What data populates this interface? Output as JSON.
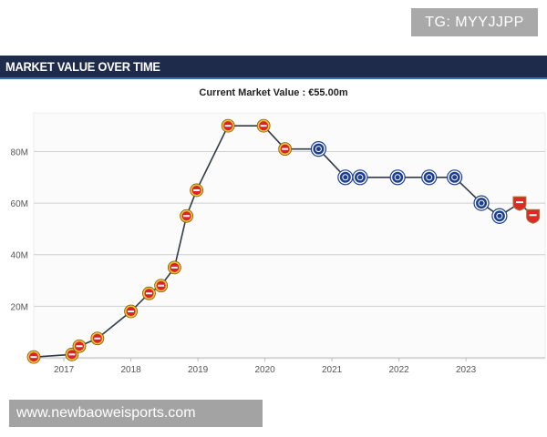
{
  "watermark_top": "TG: MYYJJPP",
  "header": {
    "title": "MARKET VALUE OVER TIME"
  },
  "watermark_bottom": "www.newbaoweisports.com",
  "chart_data": {
    "type": "line",
    "title": "Current Market Value : €55.00m",
    "xlabel": "",
    "ylabel": "",
    "ylim": [
      0,
      95
    ],
    "xlim": [
      2016.55,
      2024.1
    ],
    "grid": true,
    "y_ticks": [
      20,
      40,
      60,
      80
    ],
    "y_tick_labels": [
      "20M",
      "40M",
      "60M",
      "80M"
    ],
    "x_ticks": [
      2017,
      2018,
      2019,
      2020,
      2021,
      2022,
      2023
    ],
    "x_tick_labels": [
      "2017",
      "2018",
      "2019",
      "2020",
      "2021",
      "2022",
      "2023"
    ],
    "line_color": "#2f3b46",
    "clubs": {
      "leverkusen": {
        "fill": "#d8232a",
        "ring": "#f1c232"
      },
      "chelsea": {
        "fill": "#1c3f94",
        "ring": "#ffffff"
      },
      "arsenal": {
        "fill": "#db2b24",
        "ring": "#9c7a3c"
      }
    },
    "points": [
      {
        "x": 2016.55,
        "y": 0.3,
        "club": "leverkusen"
      },
      {
        "x": 2017.12,
        "y": 1.3,
        "club": "leverkusen"
      },
      {
        "x": 2017.23,
        "y": 4.5,
        "club": "leverkusen"
      },
      {
        "x": 2017.5,
        "y": 7.5,
        "club": "leverkusen"
      },
      {
        "x": 2018.0,
        "y": 18,
        "club": "leverkusen"
      },
      {
        "x": 2018.27,
        "y": 25,
        "club": "leverkusen"
      },
      {
        "x": 2018.45,
        "y": 28,
        "club": "leverkusen"
      },
      {
        "x": 2018.65,
        "y": 35,
        "club": "leverkusen"
      },
      {
        "x": 2018.83,
        "y": 55,
        "club": "leverkusen"
      },
      {
        "x": 2018.98,
        "y": 65,
        "club": "leverkusen"
      },
      {
        "x": 2019.45,
        "y": 90,
        "club": "leverkusen"
      },
      {
        "x": 2019.98,
        "y": 90,
        "club": "leverkusen"
      },
      {
        "x": 2020.3,
        "y": 81,
        "club": "leverkusen"
      },
      {
        "x": 2020.8,
        "y": 81,
        "club": "chelsea"
      },
      {
        "x": 2021.2,
        "y": 70,
        "club": "chelsea"
      },
      {
        "x": 2021.42,
        "y": 70,
        "club": "chelsea"
      },
      {
        "x": 2021.98,
        "y": 70,
        "club": "chelsea"
      },
      {
        "x": 2022.45,
        "y": 70,
        "club": "chelsea"
      },
      {
        "x": 2022.83,
        "y": 70,
        "club": "chelsea"
      },
      {
        "x": 2023.23,
        "y": 60,
        "club": "chelsea"
      },
      {
        "x": 2023.5,
        "y": 55,
        "club": "chelsea"
      },
      {
        "x": 2023.8,
        "y": 60,
        "club": "arsenal"
      },
      {
        "x": 2024.0,
        "y": 55,
        "club": "arsenal"
      }
    ]
  }
}
